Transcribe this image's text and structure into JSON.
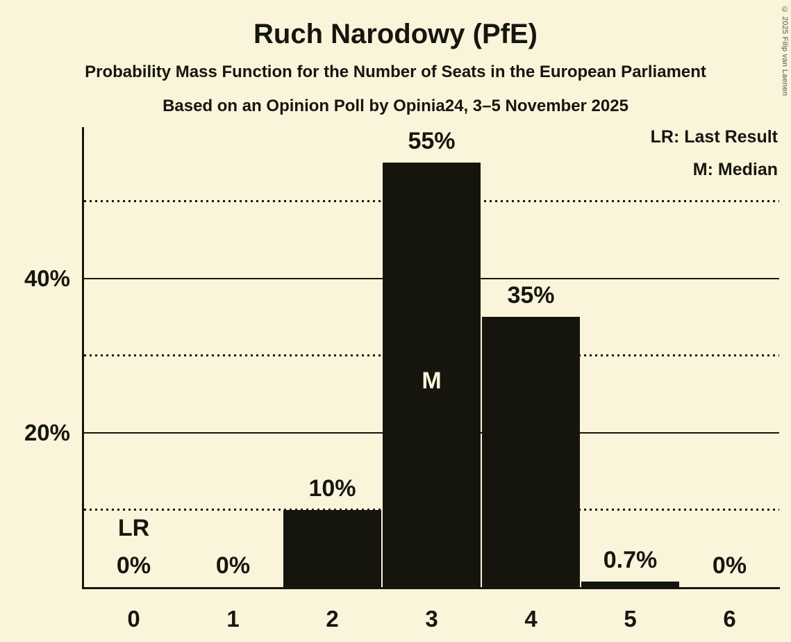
{
  "title": "Ruch Narodowy (PfE)",
  "subtitle": "Probability Mass Function for the Number of Seats in the European Parliament",
  "poll_line": "Based on an Opinion Poll by Opinia24, 3–5 November 2025",
  "copyright": "© 2025 Filip van Laenen",
  "legend": {
    "lr": "LR: Last Result",
    "m": "M: Median"
  },
  "colors": {
    "background": "#FAF4DB",
    "bar": "#15150E",
    "text": "#16160F"
  },
  "chart_data": {
    "type": "bar",
    "title": "Ruch Narodowy (PfE)",
    "categories": [
      "0",
      "1",
      "2",
      "3",
      "4",
      "5",
      "6"
    ],
    "values": [
      0,
      0,
      10,
      55,
      35,
      0.7,
      0
    ],
    "bar_labels": [
      "0%",
      "0%",
      "10%",
      "55%",
      "35%",
      "0.7%",
      "0%"
    ],
    "annotations": [
      {
        "category": "0",
        "label": "LR",
        "meaning": "Last Result",
        "placement": "above"
      },
      {
        "category": "3",
        "label": "M",
        "meaning": "Median",
        "placement": "inside"
      }
    ],
    "ylim": [
      0,
      59.6
    ],
    "yticks": [
      {
        "pct": 20,
        "label": "20%"
      },
      {
        "pct": 40,
        "label": "40%"
      }
    ],
    "dotted_gridlines": [
      10,
      30,
      50
    ],
    "legend": [
      "LR: Last Result",
      "M: Median"
    ],
    "grid": "horizontal only",
    "legend_position": "top-right"
  }
}
